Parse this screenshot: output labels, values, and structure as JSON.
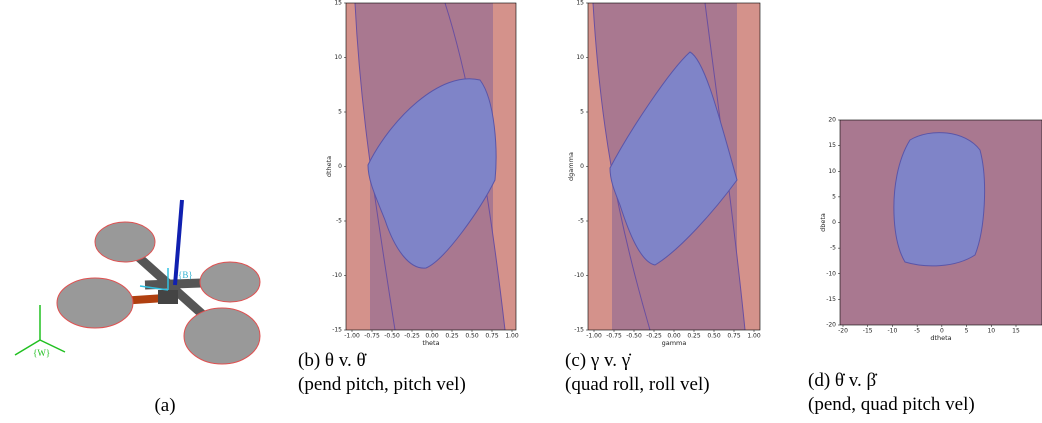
{
  "figure": {
    "panels": [
      {
        "caption": "(a)",
        "frame_label_body": "{B}",
        "frame_label_world": "{W}"
      },
      {
        "caption": "(b) θ v. θ̇",
        "subcaption": "(pend pitch, pitch vel)",
        "xlabel": "theta",
        "ylabel": "dtheta",
        "xticks": [
          "-1.00",
          "-0.75",
          "-0.50",
          "-0.25",
          "0.00",
          "0.25",
          "0.50",
          "0.75",
          "1.00"
        ],
        "yticks": [
          "15",
          "10",
          "5",
          "0",
          "-5",
          "-10",
          "-15"
        ]
      },
      {
        "caption": "(c) γ v. γ̇",
        "subcaption": "(quad roll, roll vel)",
        "xlabel": "gamma",
        "ylabel": "dgamma",
        "xticks": [
          "-1.00",
          "-0.75",
          "-0.50",
          "-0.25",
          "0.00",
          "0.25",
          "0.50",
          "0.75",
          "1.00"
        ],
        "yticks": [
          "15",
          "10",
          "5",
          "0",
          "-5",
          "-10",
          "-15"
        ]
      },
      {
        "caption": "(d) θ̇ v. β̇",
        "subcaption": "(pend, quad pitch vel)",
        "xlabel": "dtheta",
        "ylabel": "dbeta",
        "xticks": [
          "-20",
          "-15",
          "-10",
          "-5",
          "0",
          "5",
          "10",
          "15"
        ],
        "yticks": [
          "20",
          "15",
          "10",
          "5",
          "0",
          "-5",
          "-10",
          "-15",
          "-20"
        ]
      }
    ]
  }
}
